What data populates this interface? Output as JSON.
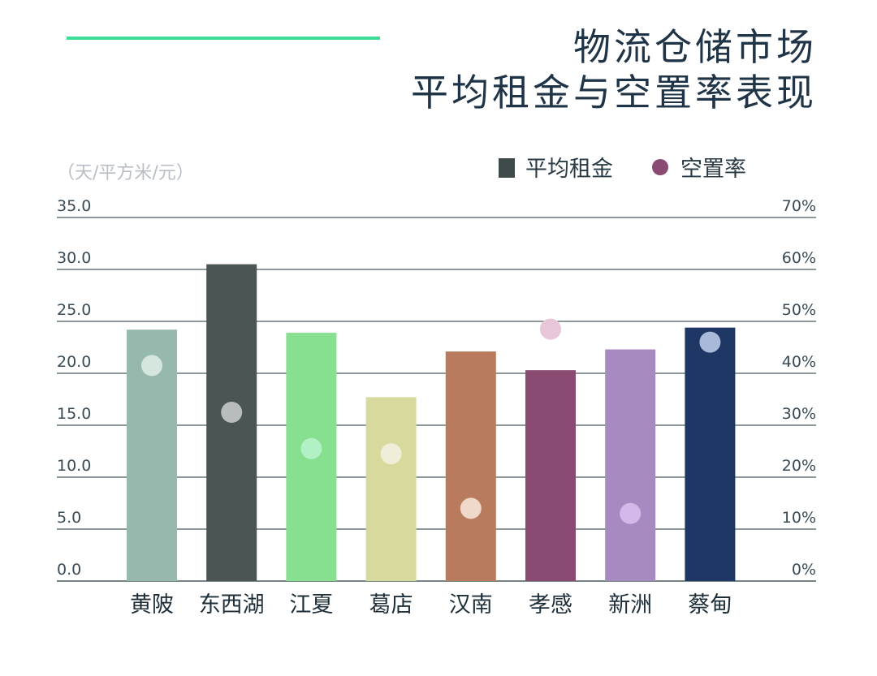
{
  "title_lines": [
    "物流仓储市场",
    "平均租金与空置率表现"
  ],
  "colors": {
    "accent_line": "#3ddc97",
    "title": "#1f3447",
    "grid": "#4a5b5f",
    "tick_text": "#3a4a55",
    "unit_text": "#b8bec4"
  },
  "chart_data": {
    "type": "bar",
    "unit_label": "（天/平方米/元）",
    "legend": [
      {
        "label": "平均租金",
        "marker": "square",
        "color": "#3d4a49"
      },
      {
        "label": "空置率",
        "marker": "circle",
        "color": "#8a4b72"
      }
    ],
    "categories": [
      "黄陂",
      "东西湖",
      "江夏",
      "葛店",
      "汉南",
      "孝感",
      "新洲",
      "蔡甸"
    ],
    "bar_colors": [
      "#97b8ac",
      "#4a5554",
      "#86e08f",
      "#d8d99c",
      "#b87b5e",
      "#8a4b72",
      "#a78bc0",
      "#1e3764"
    ],
    "dot_colors": [
      "#d4e6de",
      "#b9bcbc",
      "#b2f0c6",
      "#efefd9",
      "#f0d9cb",
      "#e7c6d9",
      "#d2b9ea",
      "#a9b9d9"
    ],
    "series": [
      {
        "name": "平均租金",
        "axis": "left",
        "values": [
          24.2,
          30.5,
          23.9,
          17.7,
          22.1,
          20.3,
          22.3,
          24.4
        ]
      },
      {
        "name": "空置率",
        "axis": "right",
        "values": [
          41.5,
          32.5,
          25.5,
          24.5,
          14.0,
          48.5,
          13.0,
          46.0
        ]
      }
    ],
    "left_axis": {
      "ticks": [
        "0.0",
        "5.0",
        "10.0",
        "15.0",
        "20.0",
        "25.0",
        "30.0",
        "35.0"
      ],
      "ylim": [
        0,
        35
      ]
    },
    "right_axis": {
      "ticks": [
        "0%",
        "10%",
        "20%",
        "30%",
        "40%",
        "50%",
        "60%",
        "70%"
      ],
      "ylim": [
        0,
        70
      ]
    },
    "grid": true,
    "legend_position": "top-right"
  }
}
